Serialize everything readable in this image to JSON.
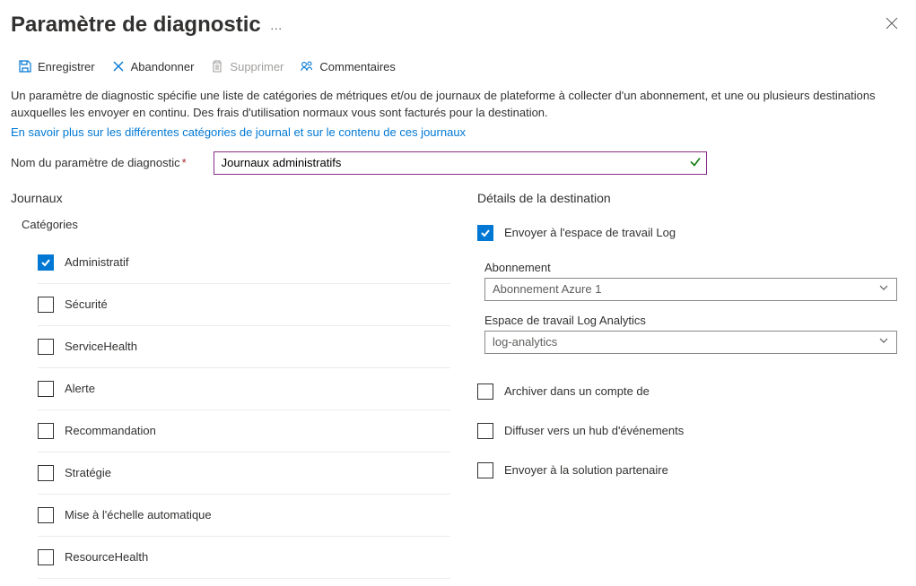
{
  "header": {
    "title": "Paramètre de diagnostic"
  },
  "toolbar": {
    "save": "Enregistrer",
    "discard": "Abandonner",
    "delete": "Supprimer",
    "feedback": "Commentaires"
  },
  "description": {
    "text": "Un paramètre de diagnostic spécifie une liste de catégories de métriques et/ou de journaux de plateforme à collecter d'un abonnement, et une ou plusieurs destinations auxquelles les envoyer en continu. Des frais d'utilisation normaux vous sont facturés pour la destination.",
    "learn_more": "En savoir plus sur les différentes catégories de journal et sur le contenu de ces journaux"
  },
  "name_field": {
    "label": "Nom du paramètre de diagnostic",
    "value": "Journaux administratifs"
  },
  "logs": {
    "title": "Journaux",
    "categories_label": "Catégories",
    "categories": [
      {
        "label": "Administratif",
        "checked": true
      },
      {
        "label": "Sécurité",
        "checked": false
      },
      {
        "label": "ServiceHealth",
        "checked": false
      },
      {
        "label": "Alerte",
        "checked": false
      },
      {
        "label": "Recommandation",
        "checked": false
      },
      {
        "label": "Stratégie",
        "checked": false
      },
      {
        "label": "Mise à l'échelle automatique",
        "checked": false
      },
      {
        "label": "ResourceHealth",
        "checked": false
      }
    ]
  },
  "destination": {
    "title": "Détails de la destination",
    "send_to_log": {
      "label": "Envoyer à l'espace de travail Log",
      "checked": true
    },
    "subscription": {
      "label": "Abonnement",
      "value": "Abonnement Azure 1"
    },
    "workspace": {
      "label": "Espace de travail Log Analytics",
      "value": "log-analytics"
    },
    "archive_storage": {
      "label": "Archiver dans un compte de",
      "checked": false
    },
    "event_hub": {
      "label": "Diffuser vers un hub d'événements",
      "checked": false
    },
    "partner": {
      "label": "Envoyer à la solution partenaire",
      "checked": false
    }
  },
  "colors": {
    "accent": "#0078d4",
    "input_border_active": "#8a2b87",
    "text": "#323130",
    "muted": "#605e5c",
    "disabled": "#a19f9d",
    "divider": "#edebe9",
    "success": "#107c10",
    "required": "#a4262c"
  }
}
